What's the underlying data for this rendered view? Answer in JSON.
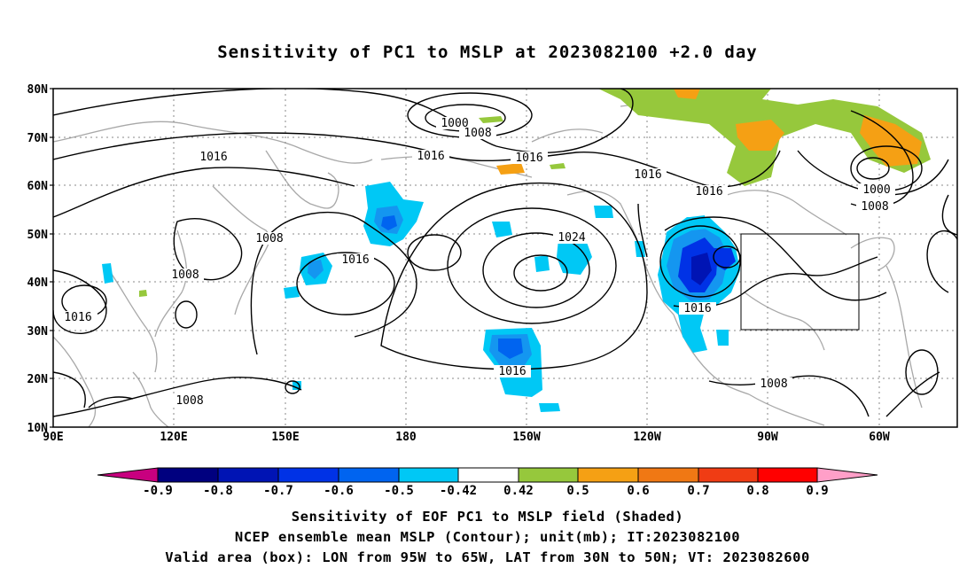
{
  "title": "Sensitivity of PC1 to MSLP at 2023082100 +2.0 day",
  "lat_labels": [
    "80N",
    "70N",
    "60N",
    "50N",
    "40N",
    "30N",
    "20N",
    "10N"
  ],
  "lon_labels": [
    "90E",
    "120E",
    "150E",
    "180",
    "150W",
    "120W",
    "90W",
    "60W"
  ],
  "contour_labels": [
    "1000",
    "1008",
    "1016",
    "1016",
    "1016",
    "1016",
    "1024",
    "1008",
    "1008",
    "1016",
    "1016",
    "1016",
    "1016",
    "1008",
    "1008",
    "1000",
    "1008",
    "1016"
  ],
  "colorbar": {
    "colors": [
      "#c8007f",
      "#00007f",
      "#0014b4",
      "#0032e6",
      "#0064f0",
      "#1496f0",
      "#00c8f5",
      "#ffffff",
      "#96c83c",
      "#f5a014",
      "#f07814",
      "#f03c14",
      "#f01e14",
      "#ff0000",
      "#ff9fc8"
    ],
    "tick_labels": [
      "-0.9",
      "-0.8",
      "-0.7",
      "-0.6",
      "-0.5",
      "-0.42",
      "0.42",
      "0.5",
      "0.6",
      "0.7",
      "0.8",
      "0.9"
    ]
  },
  "caption": {
    "line1": "Sensitivity of EOF PC1 to MSLP field (Shaded)",
    "line2": "NCEP ensemble mean MSLP (Contour); unit(mb); IT:2023082100",
    "line3": "Valid area (box): LON from 95W to 65W, LAT from 30N to 50N; VT: 2023082600"
  }
}
